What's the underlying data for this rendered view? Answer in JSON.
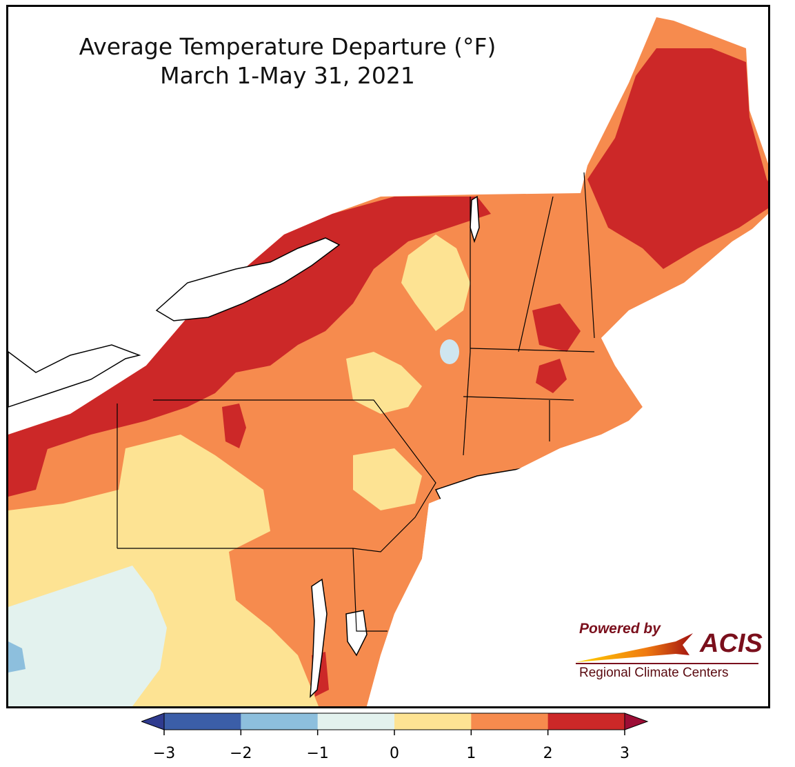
{
  "map": {
    "title_line1": "Average Temperature Departure (°F)",
    "title_line2": "March 1-May 31, 2021",
    "region": "Northeast United States",
    "units": "°F"
  },
  "logo": {
    "powered_by": "Powered by",
    "acis": "ACIS",
    "rcc": "Regional Climate Centers"
  },
  "legend": {
    "ticks": [
      "−3",
      "−2",
      "−1",
      "0",
      "1",
      "2",
      "3"
    ],
    "bins": [
      {
        "range": "-3 to -2",
        "color": "#3b5ea8"
      },
      {
        "range": "-2 to -1",
        "color": "#8dbfdd"
      },
      {
        "range": "-1 to 0",
        "color": "#e3f2ee"
      },
      {
        "range": "0 to 1",
        "color": "#fde393"
      },
      {
        "range": "1 to 2",
        "color": "#f68b4e"
      },
      {
        "range": "2 to 3",
        "color": "#cc2828"
      }
    ],
    "under_color": "#2f3b8f",
    "over_color": "#9c0d35"
  }
}
